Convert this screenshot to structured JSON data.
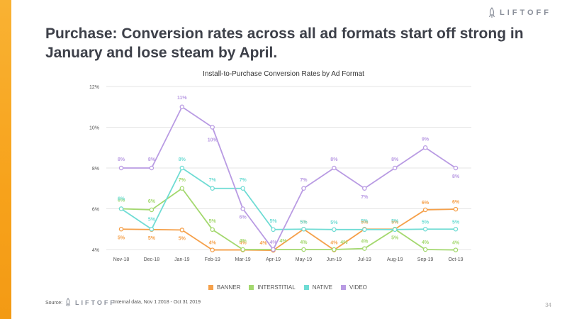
{
  "brand": {
    "name": "LIFTOFF"
  },
  "headline": "Purchase: Conversion rates across all ad formats start off strong in January and lose steam by April.",
  "footer": {
    "source_label": "Source:",
    "source_text": "Internal data, Nov 1 2018 - Oct 31 2019",
    "page_number": "34"
  },
  "colors": {
    "accent": "#f7a21b"
  },
  "chart_data": {
    "type": "line",
    "title": "Install-to-Purchase Conversion Rates by Ad Format",
    "x": [
      "Nov-18",
      "Dec-18",
      "Jan-19",
      "Feb-19",
      "Mar-19",
      "Apr-19",
      "May-19",
      "Jun-19",
      "Jul-19",
      "Aug-19",
      "Sep-19",
      "Oct-19"
    ],
    "ylim": [
      4,
      12
    ],
    "yticks": [
      "4%",
      "6%",
      "8%",
      "10%",
      "12%"
    ],
    "yticks_values": [
      4,
      6,
      8,
      10,
      12
    ],
    "grid": true,
    "legend_position": "bottom",
    "series": [
      {
        "name": "BANNER",
        "color": "#f5a04a",
        "values": [
          5,
          4.98,
          4.96,
          3.98,
          3.98,
          3.96,
          5,
          3.98,
          5,
          5,
          5.95,
          5.98
        ],
        "labels": [
          "5%",
          "5%",
          "5%",
          "4%",
          "4%",
          "4%",
          "5%",
          "4%",
          "5%",
          "5%",
          "6%",
          "6%"
        ]
      },
      {
        "name": "INTERSTITIAL",
        "color": "#a3d86e",
        "values": [
          6,
          5.95,
          7,
          4.98,
          4,
          4,
          4,
          4,
          4.05,
          5,
          4,
          3.98
        ],
        "labels": [
          "6%",
          "6%",
          "7%",
          "5%",
          "4%",
          "4%",
          "4%",
          "4%",
          "4%",
          "5%",
          "4%",
          "4%"
        ]
      },
      {
        "name": "NATIVE",
        "color": "#6fdcd4",
        "values": [
          6,
          5,
          8,
          7,
          7,
          4.98,
          5,
          4.98,
          4.98,
          4.98,
          5,
          5
        ],
        "labels": [
          "6%",
          "5%",
          "8%",
          "7%",
          "7%",
          "5%",
          "5%",
          "5%",
          "5%",
          "5%",
          "5%",
          "5%"
        ]
      },
      {
        "name": "VIDEO",
        "color": "#b99be3",
        "values": [
          8,
          8,
          11,
          10,
          6,
          4,
          7,
          8,
          7,
          8,
          9,
          8
        ],
        "labels": [
          "8%",
          "8%",
          "11%",
          "10%",
          "6%",
          "4%",
          "7%",
          "8%",
          "7%",
          "8%",
          "9%",
          "8%"
        ]
      }
    ]
  }
}
